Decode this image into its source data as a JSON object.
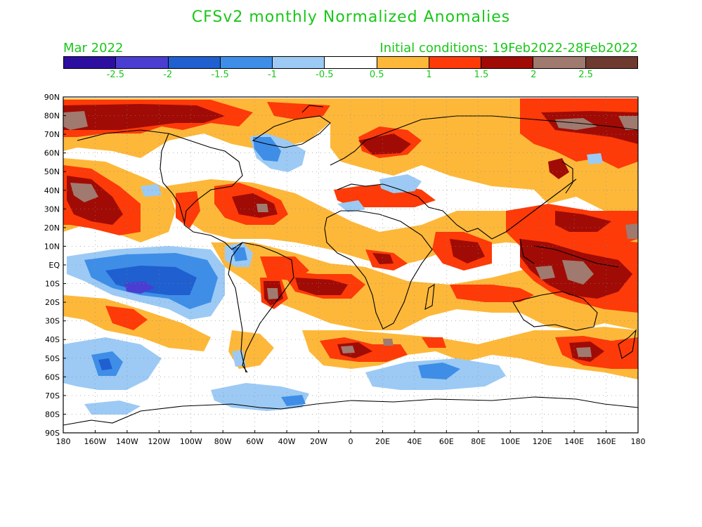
{
  "title": "CFSv2 monthly Normalized Anomalies",
  "month_label": "Mar 2022",
  "init_label": "Initial conditions: 19Feb2022-28Feb2022",
  "colorbar": {
    "colors": [
      "#2c0fa0",
      "#4a3ed2",
      "#1f5fd0",
      "#3e8ee8",
      "#9ccaf4",
      "#ffffff",
      "#fdb83a",
      "#fd3a08",
      "#a10b05",
      "#a07a6e",
      "#6e3a30"
    ],
    "labels": [
      "-2.5",
      "-2",
      "-1.5",
      "-1",
      "-0.5",
      "0.5",
      "1",
      "1.5",
      "2",
      "2.5"
    ]
  },
  "axes": {
    "lat_labels": [
      "90N",
      "80N",
      "70N",
      "60N",
      "50N",
      "40N",
      "30N",
      "20N",
      "10N",
      "EQ",
      "10S",
      "20S",
      "30S",
      "40S",
      "50S",
      "60S",
      "70S",
      "80S",
      "90S"
    ],
    "lon_labels": [
      "180",
      "160W",
      "140W",
      "120W",
      "100W",
      "80W",
      "60W",
      "40W",
      "20W",
      "0",
      "20E",
      "40E",
      "60E",
      "80E",
      "100E",
      "120E",
      "140E",
      "160E",
      "180"
    ]
  },
  "map": {
    "type": "filled-contour-anomaly-map",
    "lon_range": [
      -180,
      180
    ],
    "lat_range": [
      -90,
      90
    ],
    "grid": true
  }
}
